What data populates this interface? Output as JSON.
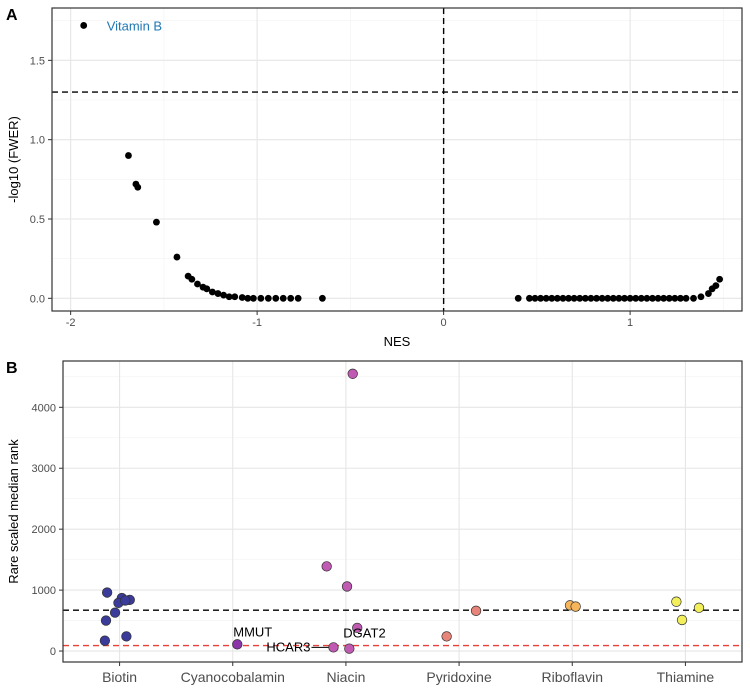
{
  "chart_data": [
    {
      "panel": "A",
      "type": "scatter",
      "xlabel": "NES",
      "ylabel": "-log10 (FWER)",
      "xlim": [
        -2.1,
        1.6
      ],
      "ylim": [
        -0.08,
        1.83
      ],
      "x_ticks": [
        -2,
        -1,
        0,
        1
      ],
      "y_ticks": [
        0.0,
        0.5,
        1.0,
        1.5
      ],
      "y_tick_labels": [
        "0.0",
        "0.5",
        "1.0",
        "1.5"
      ],
      "grid": true,
      "reference_lines": [
        {
          "orientation": "horizontal",
          "value": 1.3,
          "style": "dashed",
          "color": "#000000"
        },
        {
          "orientation": "vertical",
          "value": 0,
          "style": "dashed",
          "color": "#000000"
        }
      ],
      "point_color": "#000000",
      "annotations": [
        {
          "text": "Vitamin B",
          "x": -1.93,
          "y": 1.72,
          "color": "#1f78b4"
        }
      ],
      "points": [
        {
          "x": -1.93,
          "y": 1.72
        },
        {
          "x": -1.69,
          "y": 0.9
        },
        {
          "x": -1.65,
          "y": 0.72
        },
        {
          "x": -1.64,
          "y": 0.7
        },
        {
          "x": -1.54,
          "y": 0.48
        },
        {
          "x": -1.43,
          "y": 0.26
        },
        {
          "x": -1.37,
          "y": 0.14
        },
        {
          "x": -1.35,
          "y": 0.12
        },
        {
          "x": -1.32,
          "y": 0.09
        },
        {
          "x": -1.29,
          "y": 0.07
        },
        {
          "x": -1.27,
          "y": 0.06
        },
        {
          "x": -1.24,
          "y": 0.04
        },
        {
          "x": -1.21,
          "y": 0.03
        },
        {
          "x": -1.18,
          "y": 0.02
        },
        {
          "x": -1.15,
          "y": 0.01
        },
        {
          "x": -1.12,
          "y": 0.01
        },
        {
          "x": -1.08,
          "y": 0.005
        },
        {
          "x": -1.05,
          "y": 0.0
        },
        {
          "x": -1.02,
          "y": 0.0
        },
        {
          "x": -0.98,
          "y": 0.0
        },
        {
          "x": -0.94,
          "y": 0.0
        },
        {
          "x": -0.9,
          "y": 0.0
        },
        {
          "x": -0.86,
          "y": 0.0
        },
        {
          "x": -0.82,
          "y": 0.0
        },
        {
          "x": -0.78,
          "y": 0.0
        },
        {
          "x": -0.65,
          "y": 0.0
        },
        {
          "x": 0.4,
          "y": 0.0
        },
        {
          "x": 0.46,
          "y": 0.0
        },
        {
          "x": 0.49,
          "y": 0.0
        },
        {
          "x": 0.52,
          "y": 0.0
        },
        {
          "x": 0.55,
          "y": 0.0
        },
        {
          "x": 0.58,
          "y": 0.0
        },
        {
          "x": 0.61,
          "y": 0.0
        },
        {
          "x": 0.64,
          "y": 0.0
        },
        {
          "x": 0.67,
          "y": 0.0
        },
        {
          "x": 0.7,
          "y": 0.0
        },
        {
          "x": 0.73,
          "y": 0.0
        },
        {
          "x": 0.76,
          "y": 0.0
        },
        {
          "x": 0.79,
          "y": 0.0
        },
        {
          "x": 0.82,
          "y": 0.0
        },
        {
          "x": 0.85,
          "y": 0.0
        },
        {
          "x": 0.88,
          "y": 0.0
        },
        {
          "x": 0.91,
          "y": 0.0
        },
        {
          "x": 0.94,
          "y": 0.0
        },
        {
          "x": 0.97,
          "y": 0.0
        },
        {
          "x": 1.0,
          "y": 0.0
        },
        {
          "x": 1.03,
          "y": 0.0
        },
        {
          "x": 1.06,
          "y": 0.0
        },
        {
          "x": 1.09,
          "y": 0.0
        },
        {
          "x": 1.12,
          "y": 0.0
        },
        {
          "x": 1.15,
          "y": 0.0
        },
        {
          "x": 1.18,
          "y": 0.0
        },
        {
          "x": 1.21,
          "y": 0.0
        },
        {
          "x": 1.24,
          "y": 0.0
        },
        {
          "x": 1.27,
          "y": 0.0
        },
        {
          "x": 1.3,
          "y": 0.0
        },
        {
          "x": 1.34,
          "y": 0.0
        },
        {
          "x": 1.38,
          "y": 0.01
        },
        {
          "x": 1.42,
          "y": 0.03
        },
        {
          "x": 1.44,
          "y": 0.06
        },
        {
          "x": 1.46,
          "y": 0.08
        },
        {
          "x": 1.48,
          "y": 0.12
        }
      ]
    },
    {
      "panel": "B",
      "type": "scatter",
      "xlabel": "",
      "ylabel": "Rare scaled median rank",
      "categories": [
        "Biotin",
        "Cyanocobalamin",
        "Niacin",
        "Pyridoxine",
        "Riboflavin",
        "Thiamine"
      ],
      "ylim": [
        -180,
        4760
      ],
      "y_ticks": [
        0,
        1000,
        2000,
        3000,
        4000
      ],
      "y_tick_labels": [
        "0",
        "1000",
        "2000",
        "3000",
        "4000"
      ],
      "grid": true,
      "reference_lines": [
        {
          "orientation": "horizontal",
          "value": 670,
          "style": "dashed",
          "color": "#000000"
        },
        {
          "orientation": "horizontal",
          "value": 90,
          "style": "dashed",
          "color": "#e8413a"
        }
      ],
      "category_colors": {
        "Biotin": "#3b3b9a",
        "Cyanocobalamin": "#8c35a8",
        "Niacin": "#c15ab2",
        "Pyridoxine": "#e8857a",
        "Riboflavin": "#f6b55a",
        "Thiamine": "#f2ef5a"
      },
      "points": [
        {
          "category": "Biotin",
          "offset": -0.11,
          "y": 960
        },
        {
          "category": "Biotin",
          "offset": 0.02,
          "y": 870
        },
        {
          "category": "Biotin",
          "offset": 0.09,
          "y": 840
        },
        {
          "category": "Biotin",
          "offset": -0.01,
          "y": 790
        },
        {
          "category": "Biotin",
          "offset": 0.05,
          "y": 830
        },
        {
          "category": "Biotin",
          "offset": -0.04,
          "y": 630
        },
        {
          "category": "Biotin",
          "offset": -0.12,
          "y": 500
        },
        {
          "category": "Biotin",
          "offset": 0.06,
          "y": 240
        },
        {
          "category": "Biotin",
          "offset": -0.13,
          "y": 170
        },
        {
          "category": "Cyanocobalamin",
          "offset": 0.04,
          "y": 110
        },
        {
          "category": "Niacin",
          "offset": 0.06,
          "y": 4550
        },
        {
          "category": "Niacin",
          "offset": -0.17,
          "y": 1390
        },
        {
          "category": "Niacin",
          "offset": 0.01,
          "y": 1060
        },
        {
          "category": "Niacin",
          "offset": 0.1,
          "y": 380
        },
        {
          "category": "Niacin",
          "offset": -0.11,
          "y": 60
        },
        {
          "category": "Niacin",
          "offset": 0.03,
          "y": 40
        },
        {
          "category": "Pyridoxine",
          "offset": -0.11,
          "y": 240
        },
        {
          "category": "Pyridoxine",
          "offset": 0.15,
          "y": 660
        },
        {
          "category": "Riboflavin",
          "offset": -0.02,
          "y": 750
        },
        {
          "category": "Riboflavin",
          "offset": 0.03,
          "y": 730
        },
        {
          "category": "Thiamine",
          "offset": -0.08,
          "y": 810
        },
        {
          "category": "Thiamine",
          "offset": 0.12,
          "y": 710
        },
        {
          "category": "Thiamine",
          "offset": -0.03,
          "y": 510
        }
      ],
      "labels": [
        {
          "text": "MMUT",
          "category": "Cyanocobalamin",
          "point_index": 9
        },
        {
          "text": "HCAR3",
          "category": "Niacin",
          "point_index": 14
        },
        {
          "text": "DGAT2",
          "category": "Niacin",
          "point_index": 15
        }
      ]
    }
  ]
}
